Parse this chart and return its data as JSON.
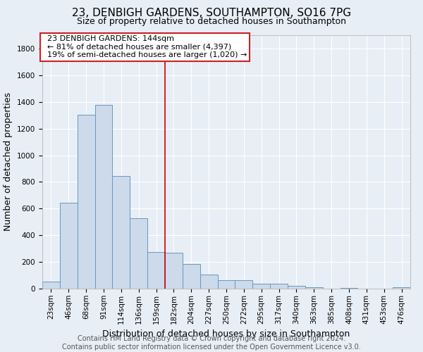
{
  "title": "23, DENBIGH GARDENS, SOUTHAMPTON, SO16 7PG",
  "subtitle": "Size of property relative to detached houses in Southampton",
  "xlabel": "Distribution of detached houses by size in Southampton",
  "ylabel": "Number of detached properties",
  "footer_line1": "Contains HM Land Registry data © Crown copyright and database right 2024.",
  "footer_line2": "Contains public sector information licensed under the Open Government Licence v3.0.",
  "bin_labels": [
    "23sqm",
    "46sqm",
    "68sqm",
    "91sqm",
    "114sqm",
    "136sqm",
    "159sqm",
    "182sqm",
    "204sqm",
    "227sqm",
    "250sqm",
    "272sqm",
    "295sqm",
    "317sqm",
    "340sqm",
    "363sqm",
    "385sqm",
    "408sqm",
    "431sqm",
    "453sqm",
    "476sqm"
  ],
  "bar_values": [
    55,
    645,
    1305,
    1375,
    845,
    530,
    275,
    270,
    185,
    105,
    65,
    65,
    35,
    35,
    20,
    10,
    0,
    5,
    0,
    0,
    10
  ],
  "bar_color": "#ccdaeb",
  "bar_edge_color": "#6699bb",
  "vline_position": 6.5,
  "vline_color": "#cc0000",
  "annotation_line1": "  23 DENBIGH GARDENS: 144sqm",
  "annotation_line2": "  ← 81% of detached houses are smaller (4,397)",
  "annotation_line3": "  19% of semi-detached houses are larger (1,020) →",
  "ylim": [
    0,
    1900
  ],
  "yticks": [
    0,
    200,
    400,
    600,
    800,
    1000,
    1200,
    1400,
    1600,
    1800
  ],
  "background_color": "#e8eef5",
  "plot_background": "#e8eef5",
  "grid_color": "#ffffff",
  "title_fontsize": 11,
  "subtitle_fontsize": 9,
  "axis_label_fontsize": 9,
  "tick_fontsize": 7.5,
  "footer_fontsize": 7,
  "annotation_fontsize": 8
}
